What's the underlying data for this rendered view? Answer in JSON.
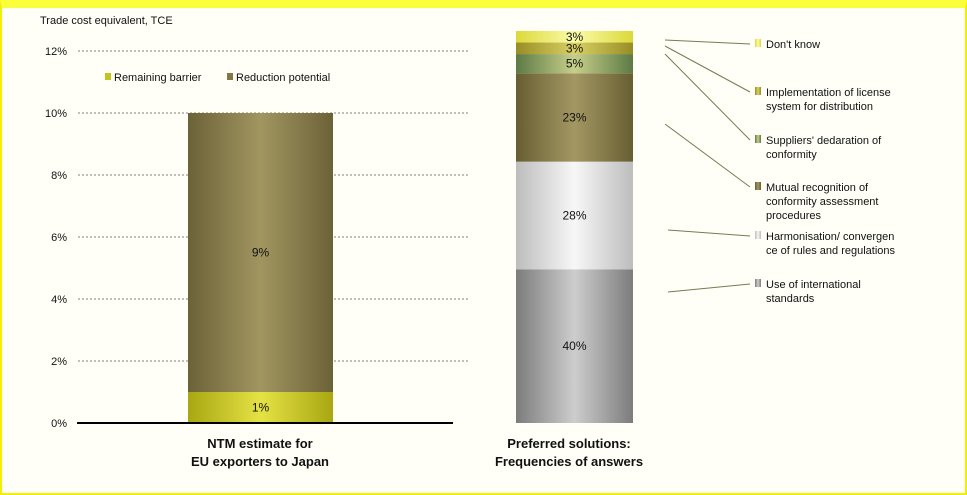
{
  "colors": {
    "frame": "#f2f000",
    "remaining": "#c4c21e",
    "reduction": "#837647",
    "intl_standards": "#9a9a9a",
    "harmonisation": "#dedede",
    "mutual_recognition": "#807643",
    "suppliers_declaration": "#7f9a5e",
    "license_system": "#b7ae3f",
    "dont_know": "#f0ee6a"
  },
  "chart_data": [
    {
      "type": "bar",
      "stacked": true,
      "title": "NTM estimate for EU exporters to Japan",
      "title_lines": [
        "NTM estimate for",
        "EU exporters to Japan"
      ],
      "ylabel": "Trade cost equivalent, TCE",
      "ylim": [
        0,
        12
      ],
      "yticks": [
        "0%",
        "2%",
        "4%",
        "6%",
        "8%",
        "10%",
        "12%"
      ],
      "grid": true,
      "legend_position": "top",
      "categories": [
        ""
      ],
      "series": [
        {
          "name": "Remaining barrier",
          "values": [
            1
          ],
          "label": "1%",
          "color_key": "remaining"
        },
        {
          "name": "Reduction potential",
          "values": [
            9
          ],
          "label": "9%",
          "color_key": "reduction"
        }
      ]
    },
    {
      "type": "bar",
      "stacked": true,
      "title": "Preferred solutions: Frequencies of answers",
      "title_lines": [
        "Preferred solutions:",
        "Frequencies of answers"
      ],
      "legend_position": "right",
      "unit": "%",
      "segments": [
        {
          "name": "Use of international standards",
          "legend_lines": [
            "Use of international",
            "standards"
          ],
          "value": 40,
          "label": "40%",
          "color_key": "intl_standards"
        },
        {
          "name": "Harmonisation/ convergence of rules and regulations",
          "legend_lines": [
            "Harmonisation/ convergen",
            "ce of rules and regulations"
          ],
          "value": 28,
          "label": "28%",
          "color_key": "harmonisation"
        },
        {
          "name": "Mutual recognition of conformity assessment procedures",
          "legend_lines": [
            "Mutual recognition of",
            "conformity assessment",
            "procedures"
          ],
          "value": 23,
          "label": "23%",
          "color_key": "mutual_recognition"
        },
        {
          "name": "Suppliers' declaration of conformity",
          "legend_lines": [
            "Suppliers' dedaration of",
            "conformity"
          ],
          "value": 5,
          "label": "5%",
          "color_key": "suppliers_declaration"
        },
        {
          "name": "Implementation of license system for distribution",
          "legend_lines": [
            "Implementation of license",
            "system for distribution"
          ],
          "value": 3,
          "label": "3%",
          "color_key": "license_system"
        },
        {
          "name": "Don't know",
          "legend_lines": [
            "Don't know"
          ],
          "value": 3,
          "label": "3%",
          "color_key": "dont_know"
        }
      ]
    }
  ]
}
